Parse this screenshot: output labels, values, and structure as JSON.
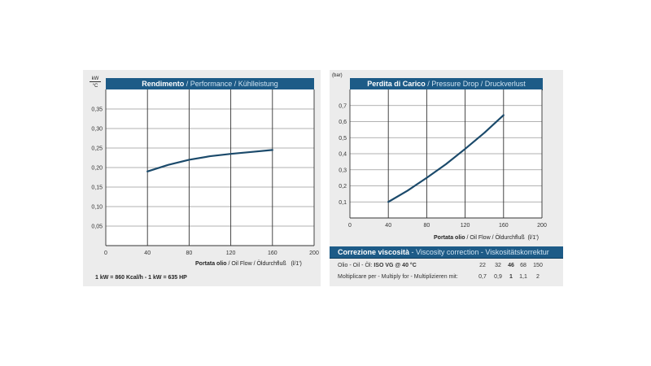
{
  "chart_data": [
    {
      "type": "line",
      "title_bold": "Rendimento",
      "title_rest": " / Performance / Kühlleistung",
      "ylabel_num": "kW",
      "ylabel_den": "°C",
      "xlabel_bold": "Portata olio",
      "xlabel_rest": " / Oil Flow / Öldurchfluß",
      "xunit": "(l/1')",
      "xlim": [
        0,
        200
      ],
      "ylim": [
        0,
        0.4
      ],
      "xticks": [
        "0",
        "40",
        "80",
        "120",
        "160",
        "200"
      ],
      "yticks": [
        "0,05",
        "0,10",
        "0,15",
        "0,20",
        "0,25",
        "0,30",
        "0,35"
      ],
      "x": [
        40,
        60,
        80,
        100,
        120,
        140,
        160
      ],
      "y": [
        0.19,
        0.207,
        0.22,
        0.229,
        0.235,
        0.24,
        0.245
      ],
      "grid": true,
      "color": "#1b4a6b",
      "footnote": "1 kW = 860 Kcal/h  - 1 kW = 635 HP"
    },
    {
      "type": "line",
      "title_bold": "Perdita di Carico",
      "title_rest": " / Pressure Drop / Druckverlust",
      "ylabel": "(bar)",
      "xlabel_bold": "Portata olio",
      "xlabel_rest": " / Oil Flow  / Öldurchfluß",
      "xunit": "(l/1')",
      "xlim": [
        0,
        200
      ],
      "ylim": [
        0,
        0.8
      ],
      "xticks": [
        "0",
        "40",
        "80",
        "120",
        "160",
        "200"
      ],
      "yticks": [
        "0,1",
        "0,2",
        "0,3",
        "0,4",
        "0,5",
        "0,6",
        "0,7"
      ],
      "x": [
        40,
        60,
        80,
        100,
        120,
        140,
        160
      ],
      "y": [
        0.1,
        0.17,
        0.25,
        0.335,
        0.43,
        0.53,
        0.64
      ],
      "grid": true,
      "color": "#1b4a6b"
    }
  ],
  "viscosity": {
    "title_bold": "Correzione viscosità",
    "title_rest": "  -  Viscosity correction  -  Viskositätskorrektur",
    "row1_label_plain": "Olio - Oil - Öl: ",
    "row1_label_bold": "ISO VG @ 40 °C",
    "row1_values": [
      "22",
      "32",
      "46",
      "68",
      "150"
    ],
    "row2_label": "Moltiplicare per - Multiply for - Multiplizieren mit:",
    "row2_values": [
      "0,7",
      "0,9",
      "1",
      "1,1",
      "2"
    ],
    "highlight_index": 2
  }
}
